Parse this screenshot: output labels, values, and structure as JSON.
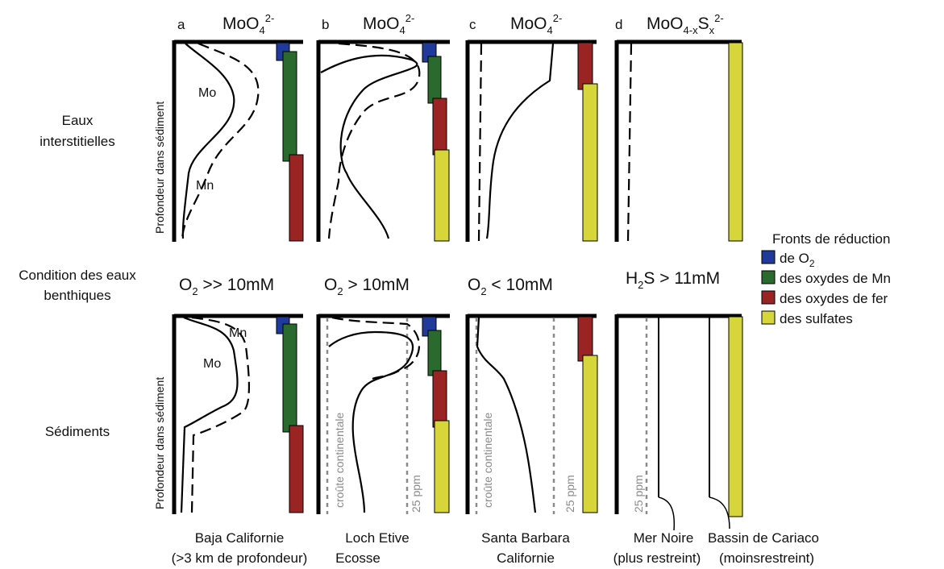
{
  "row_labels": {
    "porewater_line1": "Eaux",
    "porewater_line2": "interstitielles",
    "condition_line1": "Condition des eaux",
    "condition_line2": "benthiques",
    "sediments": "Sédiments"
  },
  "depth_axis_label": "Profondeur dans sédiment",
  "panels": [
    {
      "letter": "a",
      "species_base": "MoO",
      "species_sub": "4",
      "species_sup": "2-",
      "species_mid": "",
      "species_mid_sub": "",
      "condition_main": "O",
      "condition_sub": "2",
      "condition_rest": " >> 10mM",
      "site_line1": "Baja Californie",
      "site_line2": "(>3 km de profondeur)"
    },
    {
      "letter": "b",
      "species_base": "MoO",
      "species_sub": "4",
      "species_sup": "2-",
      "species_mid": "",
      "species_mid_sub": "",
      "condition_main": "O",
      "condition_sub": "2",
      "condition_rest": " > 10mM",
      "site_line1": "Loch Etive",
      "site_line2": "Ecosse"
    },
    {
      "letter": "c",
      "species_base": "MoO",
      "species_sub": "4",
      "species_sup": "2-",
      "species_mid": "",
      "species_mid_sub": "",
      "condition_main": "O",
      "condition_sub": "2",
      "condition_rest": " < 10mM",
      "site_line1": "Santa Barbara",
      "site_line2": "Californie"
    },
    {
      "letter": "d",
      "species_base": "MoO",
      "species_sub": "4-x",
      "species_sup": "2-",
      "species_mid": "S",
      "species_mid_sub": "x",
      "condition_main": "H",
      "condition_sub": "2",
      "condition_rest": "S > 11mM",
      "site_line1": "Mer Noire",
      "site_line2": "(plus restreint)",
      "site2_line1": "Bassin de Cariaco",
      "site2_line2": "(moinsrestreint)"
    }
  ],
  "curve_labels": {
    "mo": "Mo",
    "mn": "Mn"
  },
  "annotations": {
    "crust": "croûte continentale",
    "ppm": "25 ppm"
  },
  "legend": {
    "title": "Fronts de réduction",
    "items": [
      {
        "label": "de O",
        "sub": "2",
        "color": "#1f3a9a"
      },
      {
        "label": "des oxydes de Mn",
        "sub": "",
        "color": "#2a6a2e"
      },
      {
        "label": "des oxydes de fer",
        "sub": "",
        "color": "#9a2424"
      },
      {
        "label": "des sulfates",
        "sub": "",
        "color": "#d6d63a"
      }
    ]
  }
}
